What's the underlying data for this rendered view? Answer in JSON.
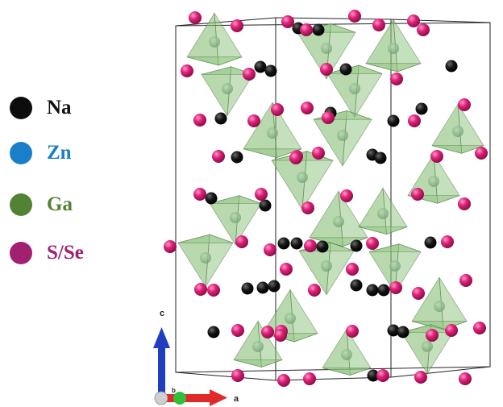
{
  "legend": [
    {
      "label": "Na",
      "color": "#0d0d0d",
      "text_color": "#111111"
    },
    {
      "label": "Zn",
      "color": "#1a7fc9",
      "text_color": "#1a7fc9"
    },
    {
      "label": "Ga",
      "color": "#548235",
      "text_color": "#548235"
    },
    {
      "label": "S/Se",
      "color": "#a1206f",
      "text_color": "#a1206f"
    }
  ],
  "axes": {
    "c": "c",
    "a": "a",
    "b": "b"
  },
  "colors": {
    "sulfur": "#e0207a",
    "sodium": "#111111",
    "polyhedron_fill": "#8cc27a",
    "polyhedron_edge": "#4f7a44",
    "cell_line": "#222222",
    "c_axis": "#1f3fbf",
    "a_axis": "#e02a2a",
    "b_axis": "#2fbf3a"
  }
}
